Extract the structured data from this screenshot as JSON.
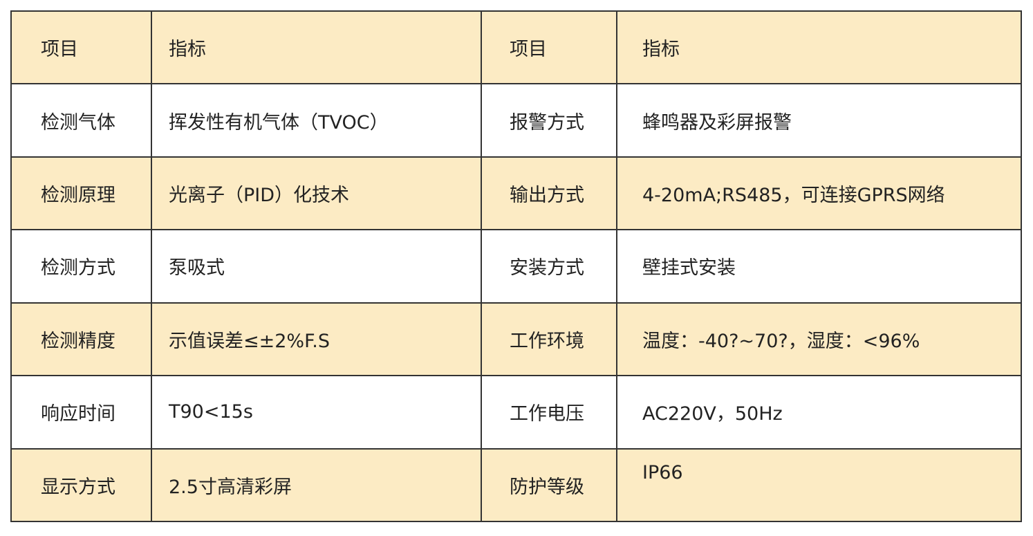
{
  "header": [
    "项目",
    "指标",
    "项目",
    "指标"
  ],
  "rows": [
    [
      "检测气体",
      "挥发性有机气体（TVOC）",
      "报警方式",
      "蜂鸣器及彩屏报警"
    ],
    [
      "检测原理",
      "光离子（PID）化技术",
      "输出方式",
      "4-20mA;RS485，可连接GPRS网络"
    ],
    [
      "检测方式",
      "泵吸式",
      "安装方式",
      "壁挂式安装"
    ],
    [
      "检测精度",
      "示值误差≤±2%F.S",
      "工作环境",
      "温度：-40?~70?，湿度：<96%"
    ],
    [
      "响应时间",
      "T90<15s",
      "工作电压",
      "AC220V，50Hz"
    ],
    [
      "显示方式",
      "2.5寸高清彩屏",
      "防护等级",
      "IP66"
    ]
  ],
  "colors": {
    "header_fill": "#fcebc4",
    "alt_fill": "#ffffff",
    "border": "#222222"
  }
}
